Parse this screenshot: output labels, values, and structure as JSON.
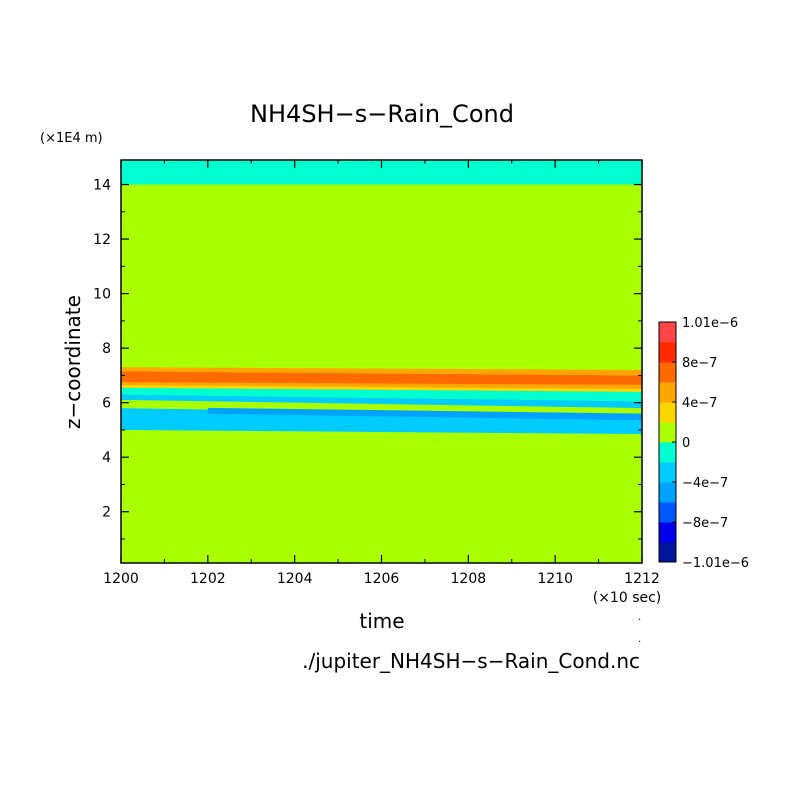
{
  "chart_data": {
    "type": "heatmap",
    "title": "NH4SH−s−Rain_Cond",
    "xlabel": "time",
    "ylabel": "z−coordinate",
    "x_unit": "(×10 sec)",
    "y_unit": "(×1E4 m)",
    "footer": "./jupiter_NH4SH−s−Rain_Cond.nc",
    "xlim": [
      1200,
      1212
    ],
    "ylim": [
      0.12,
      14.9
    ],
    "xticks": [
      "1200",
      "1202",
      "1204",
      "1206",
      "1208",
      "1210",
      "1212"
    ],
    "yticks": [
      "2",
      "4",
      "6",
      "8",
      "10",
      "12",
      "14"
    ],
    "colorbar": {
      "levels": [
        -1.01e-06,
        -9e-07,
        -8e-07,
        -6e-07,
        -4e-07,
        -2e-07,
        0,
        2e-07,
        4e-07,
        6e-07,
        8e-07,
        9e-07,
        1.01e-06
      ],
      "colors": [
        "#00159b",
        "#0000ea",
        "#0058ff",
        "#00a2ff",
        "#00ccff",
        "#00ffd0",
        "#aaff00",
        "#ffd500",
        "#ffa500",
        "#ff6a00",
        "#ff2a00",
        "#ff4545"
      ],
      "tick_labels": [
        {
          "text": "1.01e−6",
          "value": 1.01e-06
        },
        {
          "text": "8e−7",
          "value": 8e-07
        },
        {
          "text": "4e−7",
          "value": 4e-07
        },
        {
          "text": "0",
          "value": 0
        },
        {
          "text": "−4e−7",
          "value": -4e-07
        },
        {
          "text": "−8e−7",
          "value": -8e-07
        },
        {
          "text": "−1.01e−6",
          "value": -1.01e-06
        }
      ]
    },
    "background_value": 1e-07,
    "bands": [
      {
        "name": "top-layer",
        "value": -1e-07,
        "y0_start": 14.0,
        "y0_end": 14.0,
        "y1_start": 14.9,
        "y1_end": 14.9
      },
      {
        "name": "light-blue-lower",
        "value": -3e-07,
        "y0_start": 5.0,
        "y0_end": 4.85,
        "y1_start": 5.8,
        "y1_end": 5.5
      },
      {
        "name": "light-blue-upper",
        "value": -3e-07,
        "y0_start": 6.1,
        "y0_end": 5.8,
        "y1_start": 6.3,
        "y1_end": 6.05
      },
      {
        "name": "blue-core",
        "value": -5e-07,
        "x_start": 1202,
        "y0_start": 5.65,
        "y0_end": 5.35,
        "y1_start": 5.85,
        "y1_end": 5.6
      },
      {
        "name": "cyan-upper",
        "value": -1e-07,
        "y0_start": 6.3,
        "y0_end": 6.05,
        "y1_start": 6.55,
        "y1_end": 6.4
      },
      {
        "name": "yellow",
        "value": 3e-07,
        "y0_start": 6.55,
        "y0_end": 6.4,
        "y1_start": 6.65,
        "y1_end": 6.5
      },
      {
        "name": "orange",
        "value": 5e-07,
        "y0_start": 6.65,
        "y0_end": 6.5,
        "y1_start": 6.75,
        "y1_end": 6.65
      },
      {
        "name": "red-orange",
        "value": 7e-07,
        "y0_start": 6.75,
        "y0_end": 6.65,
        "y1_start": 7.15,
        "y1_end": 7.0
      },
      {
        "name": "top-orange",
        "value": 5e-07,
        "y0_start": 7.15,
        "y0_end": 7.0,
        "y1_start": 7.3,
        "y1_end": 7.2
      }
    ]
  }
}
